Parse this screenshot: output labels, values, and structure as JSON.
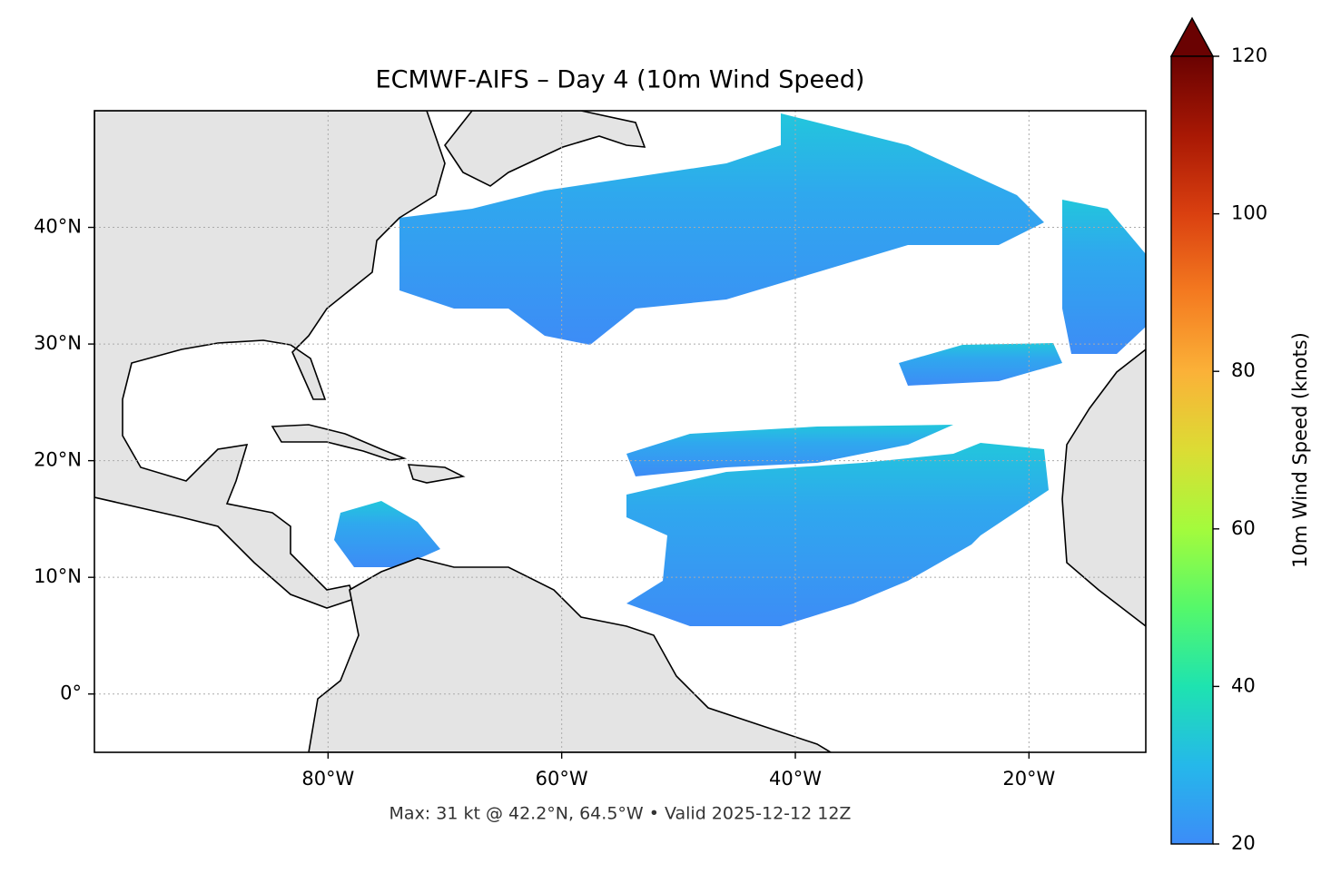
{
  "chart_data": {
    "type": "map",
    "title": "ECMWF-AIFS – Day 4 (10m Wind Speed)",
    "subtitle": "Max: 31 kt @ 42.2°N, 64.5°W • Valid 2025-12-12 12Z",
    "xlim": [
      -100,
      -10
    ],
    "ylim": [
      -5,
      50
    ],
    "xticks": [
      {
        "value": -80,
        "label": "80°W"
      },
      {
        "value": -60,
        "label": "60°W"
      },
      {
        "value": -40,
        "label": "40°W"
      },
      {
        "value": -20,
        "label": "20°W"
      }
    ],
    "yticks": [
      {
        "value": 0,
        "label": "0°"
      },
      {
        "value": 10,
        "label": "10°N"
      },
      {
        "value": 20,
        "label": "20°N"
      },
      {
        "value": 30,
        "label": "30°N"
      },
      {
        "value": 40,
        "label": "40°N"
      }
    ],
    "grid": true,
    "colorbar": {
      "label": "10m Wind Speed (knots)",
      "lim": [
        20,
        120
      ],
      "ticks": [
        20,
        40,
        60,
        80,
        100,
        120
      ],
      "colors": [
        "#3c8cf8",
        "#25b8ea",
        "#1ee3b0",
        "#55f86a",
        "#a4fb3c",
        "#dcdc34",
        "#fbb138",
        "#f47a20",
        "#da4010",
        "#a81804",
        "#6a0202"
      ]
    }
  }
}
